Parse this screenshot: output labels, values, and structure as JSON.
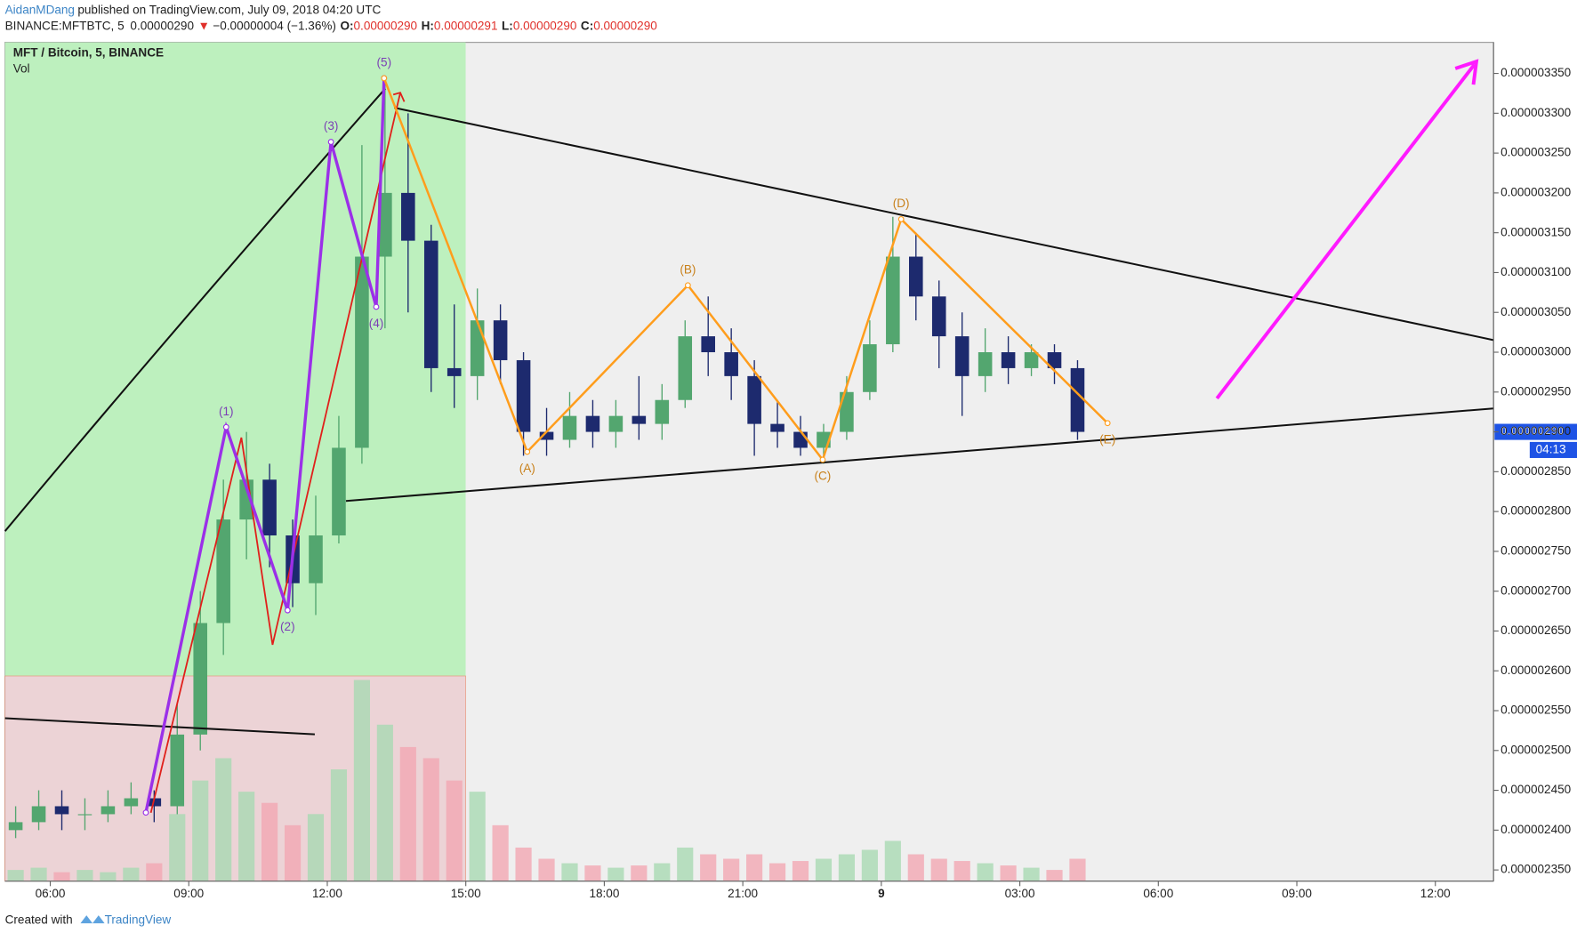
{
  "header": {
    "author": "AidanMDang",
    "published": "published on TradingView.com, July 09, 2018 04:20 UTC",
    "symbol": "BINANCE:MFTBTC, 5",
    "last": "0.00000290",
    "arrow": "▼",
    "change": "−0.00000004 (−1.36%)",
    "o_key": "O:",
    "o_val": "0.00000290",
    "h_key": "H:",
    "h_val": "0.00000291",
    "l_key": "L:",
    "l_val": "0.00000290",
    "c_key": "C:",
    "c_val": "0.00000290"
  },
  "footer": {
    "created": "Created with",
    "brand": "TradingView"
  },
  "chart_data": {
    "type": "candlestick",
    "title": "MFT / Bitcoin, 5, BINANCE",
    "subtitle": "Vol",
    "up_color": "#53a66f",
    "down_color": "#1d2a6e",
    "volume_up_color": "#a9d9b3",
    "volume_down_color": "#f2a7b3",
    "x": [
      5,
      5.5,
      6,
      6.5,
      7,
      7.5,
      8,
      8.5,
      9,
      9.5,
      10,
      10.5,
      11,
      11.5,
      12,
      12.5,
      13,
      13.5,
      14,
      14.5,
      15,
      15.5,
      16,
      16.5,
      17,
      17.5,
      18,
      18.5,
      19,
      19.5,
      20,
      20.5,
      21,
      21.5,
      22,
      22.5,
      23,
      23.5,
      24,
      24.5,
      25,
      25.5,
      26,
      26.5,
      27,
      27.5,
      28
    ],
    "open": [
      2.4e-06,
      2.41e-06,
      2.43e-06,
      2.42e-06,
      2.42e-06,
      2.43e-06,
      2.44e-06,
      2.43e-06,
      2.52e-06,
      2.66e-06,
      2.79e-06,
      2.84e-06,
      2.77e-06,
      2.71e-06,
      2.77e-06,
      2.88e-06,
      3.12e-06,
      3.2e-06,
      3.14e-06,
      2.98e-06,
      2.97e-06,
      3.04e-06,
      2.99e-06,
      2.9e-06,
      2.89e-06,
      2.92e-06,
      2.9e-06,
      2.92e-06,
      2.91e-06,
      2.94e-06,
      3.02e-06,
      3e-06,
      2.97e-06,
      2.91e-06,
      2.9e-06,
      2.88e-06,
      2.9e-06,
      2.95e-06,
      3.01e-06,
      3.12e-06,
      3.07e-06,
      3.02e-06,
      2.97e-06,
      3e-06,
      2.98e-06,
      3e-06,
      2.98e-06
    ],
    "high": [
      2.43e-06,
      2.45e-06,
      2.45e-06,
      2.44e-06,
      2.45e-06,
      2.46e-06,
      2.45e-06,
      2.56e-06,
      2.7e-06,
      2.84e-06,
      2.9e-06,
      2.86e-06,
      2.79e-06,
      2.82e-06,
      2.92e-06,
      3.26e-06,
      3.34e-06,
      3.3e-06,
      3.16e-06,
      3.06e-06,
      3.08e-06,
      3.06e-06,
      3e-06,
      2.93e-06,
      2.95e-06,
      2.94e-06,
      2.94e-06,
      2.97e-06,
      2.96e-06,
      3.04e-06,
      3.07e-06,
      3.03e-06,
      2.99e-06,
      2.94e-06,
      2.92e-06,
      2.91e-06,
      2.97e-06,
      3.04e-06,
      3.17e-06,
      3.15e-06,
      3.09e-06,
      3.05e-06,
      3.03e-06,
      3.02e-06,
      3.01e-06,
      3.01e-06,
      2.99e-06
    ],
    "low": [
      2.39e-06,
      2.4e-06,
      2.4e-06,
      2.4e-06,
      2.41e-06,
      2.42e-06,
      2.41e-06,
      2.42e-06,
      2.5e-06,
      2.62e-06,
      2.74e-06,
      2.73e-06,
      2.68e-06,
      2.67e-06,
      2.76e-06,
      2.86e-06,
      3.03e-06,
      3.05e-06,
      2.95e-06,
      2.93e-06,
      2.94e-06,
      2.96e-06,
      2.87e-06,
      2.87e-06,
      2.88e-06,
      2.88e-06,
      2.88e-06,
      2.89e-06,
      2.89e-06,
      2.93e-06,
      2.97e-06,
      2.94e-06,
      2.87e-06,
      2.88e-06,
      2.87e-06,
      2.86e-06,
      2.89e-06,
      2.94e-06,
      3e-06,
      3.04e-06,
      2.98e-06,
      2.92e-06,
      2.95e-06,
      2.96e-06,
      2.97e-06,
      2.96e-06,
      2.89e-06
    ],
    "close": [
      2.41e-06,
      2.43e-06,
      2.42e-06,
      2.42e-06,
      2.43e-06,
      2.44e-06,
      2.43e-06,
      2.52e-06,
      2.66e-06,
      2.79e-06,
      2.84e-06,
      2.77e-06,
      2.71e-06,
      2.77e-06,
      2.88e-06,
      3.12e-06,
      3.2e-06,
      3.14e-06,
      2.98e-06,
      2.97e-06,
      3.04e-06,
      2.99e-06,
      2.9e-06,
      2.89e-06,
      2.92e-06,
      2.9e-06,
      2.92e-06,
      2.91e-06,
      2.94e-06,
      3.02e-06,
      3e-06,
      2.97e-06,
      2.91e-06,
      2.9e-06,
      2.88e-06,
      2.9e-06,
      2.95e-06,
      3.01e-06,
      3.12e-06,
      3.07e-06,
      3.02e-06,
      2.97e-06,
      3e-06,
      2.98e-06,
      3e-06,
      2.98e-06,
      2.9e-06
    ],
    "volume": [
      5,
      6,
      4,
      5,
      4,
      6,
      8,
      30,
      45,
      55,
      40,
      35,
      25,
      30,
      50,
      90,
      70,
      60,
      55,
      45,
      40,
      25,
      15,
      10,
      8,
      7,
      6,
      7,
      8,
      15,
      12,
      10,
      12,
      8,
      9,
      10,
      12,
      14,
      18,
      12,
      10,
      9,
      8,
      7,
      6,
      5,
      10
    ],
    "xlim": [
      5.02,
      37.26
    ],
    "xticks": [
      {
        "value": 6,
        "label": "06:00"
      },
      {
        "value": 9,
        "label": "09:00"
      },
      {
        "value": 12,
        "label": "12:00"
      },
      {
        "value": 15,
        "label": "15:00"
      },
      {
        "value": 18,
        "label": "18:00"
      },
      {
        "value": 21,
        "label": "21:00"
      },
      {
        "value": 24,
        "label": "9"
      },
      {
        "value": 27,
        "label": "03:00"
      },
      {
        "value": 30,
        "label": "06:00"
      },
      {
        "value": 33,
        "label": "09:00"
      },
      {
        "value": 36,
        "label": "12:00"
      }
    ],
    "ylim": [
      2.336e-06,
      3.389e-06
    ],
    "yticks": [
      {
        "value": 2.35e-06,
        "label": "0.000002350"
      },
      {
        "value": 2.4e-06,
        "label": "0.000002400"
      },
      {
        "value": 2.45e-06,
        "label": "0.000002450"
      },
      {
        "value": 2.5e-06,
        "label": "0.000002500"
      },
      {
        "value": 2.55e-06,
        "label": "0.000002550"
      },
      {
        "value": 2.6e-06,
        "label": "0.000002600"
      },
      {
        "value": 2.65e-06,
        "label": "0.000002650"
      },
      {
        "value": 2.7e-06,
        "label": "0.000002700"
      },
      {
        "value": 2.75e-06,
        "label": "0.000002750"
      },
      {
        "value": 2.8e-06,
        "label": "0.000002800"
      },
      {
        "value": 2.85e-06,
        "label": "0.000002850"
      },
      {
        "value": 2.9e-06,
        "label": "0.000002900"
      },
      {
        "value": 2.95e-06,
        "label": "0.000002950"
      },
      {
        "value": 3e-06,
        "label": "0.000003000"
      },
      {
        "value": 3.05e-06,
        "label": "0.000003050"
      },
      {
        "value": 3.1e-06,
        "label": "0.000003100"
      },
      {
        "value": 3.15e-06,
        "label": "0.000003150"
      },
      {
        "value": 3.2e-06,
        "label": "0.000003200"
      },
      {
        "value": 3.25e-06,
        "label": "0.000003250"
      },
      {
        "value": 3.3e-06,
        "label": "0.000003300"
      },
      {
        "value": 3.35e-06,
        "label": "0.000003350"
      }
    ],
    "price_tag": {
      "value": 2.9e-06,
      "label": "0.00000290",
      "timer": "04:13",
      "color": "#1e53e5"
    },
    "waves": [
      {
        "color": "#9b30e8",
        "label_color": "#7b3fb5",
        "x": [
          8.07,
          9.81,
          11.14,
          12.08,
          13.06,
          13.23
        ],
        "y": [
          2.422e-06,
          2.906e-06,
          2.676e-06,
          3.264e-06,
          3.057e-06,
          3.344e-06
        ],
        "labels": [
          null,
          "(1)",
          "(2)",
          "(3)",
          "(4)",
          "(5)"
        ]
      },
      {
        "color": "#ff9d1c",
        "label_color": "#c8801a",
        "x": [
          13.23,
          16.33,
          19.81,
          22.73,
          24.43,
          28.9
        ],
        "y": [
          3.344e-06,
          2.875e-06,
          3.084e-06,
          2.865e-06,
          3.167e-06,
          2.911e-06
        ],
        "labels": [
          null,
          "(A)",
          "(B)",
          "(C)",
          "(D)",
          "(E)"
        ]
      }
    ]
  }
}
